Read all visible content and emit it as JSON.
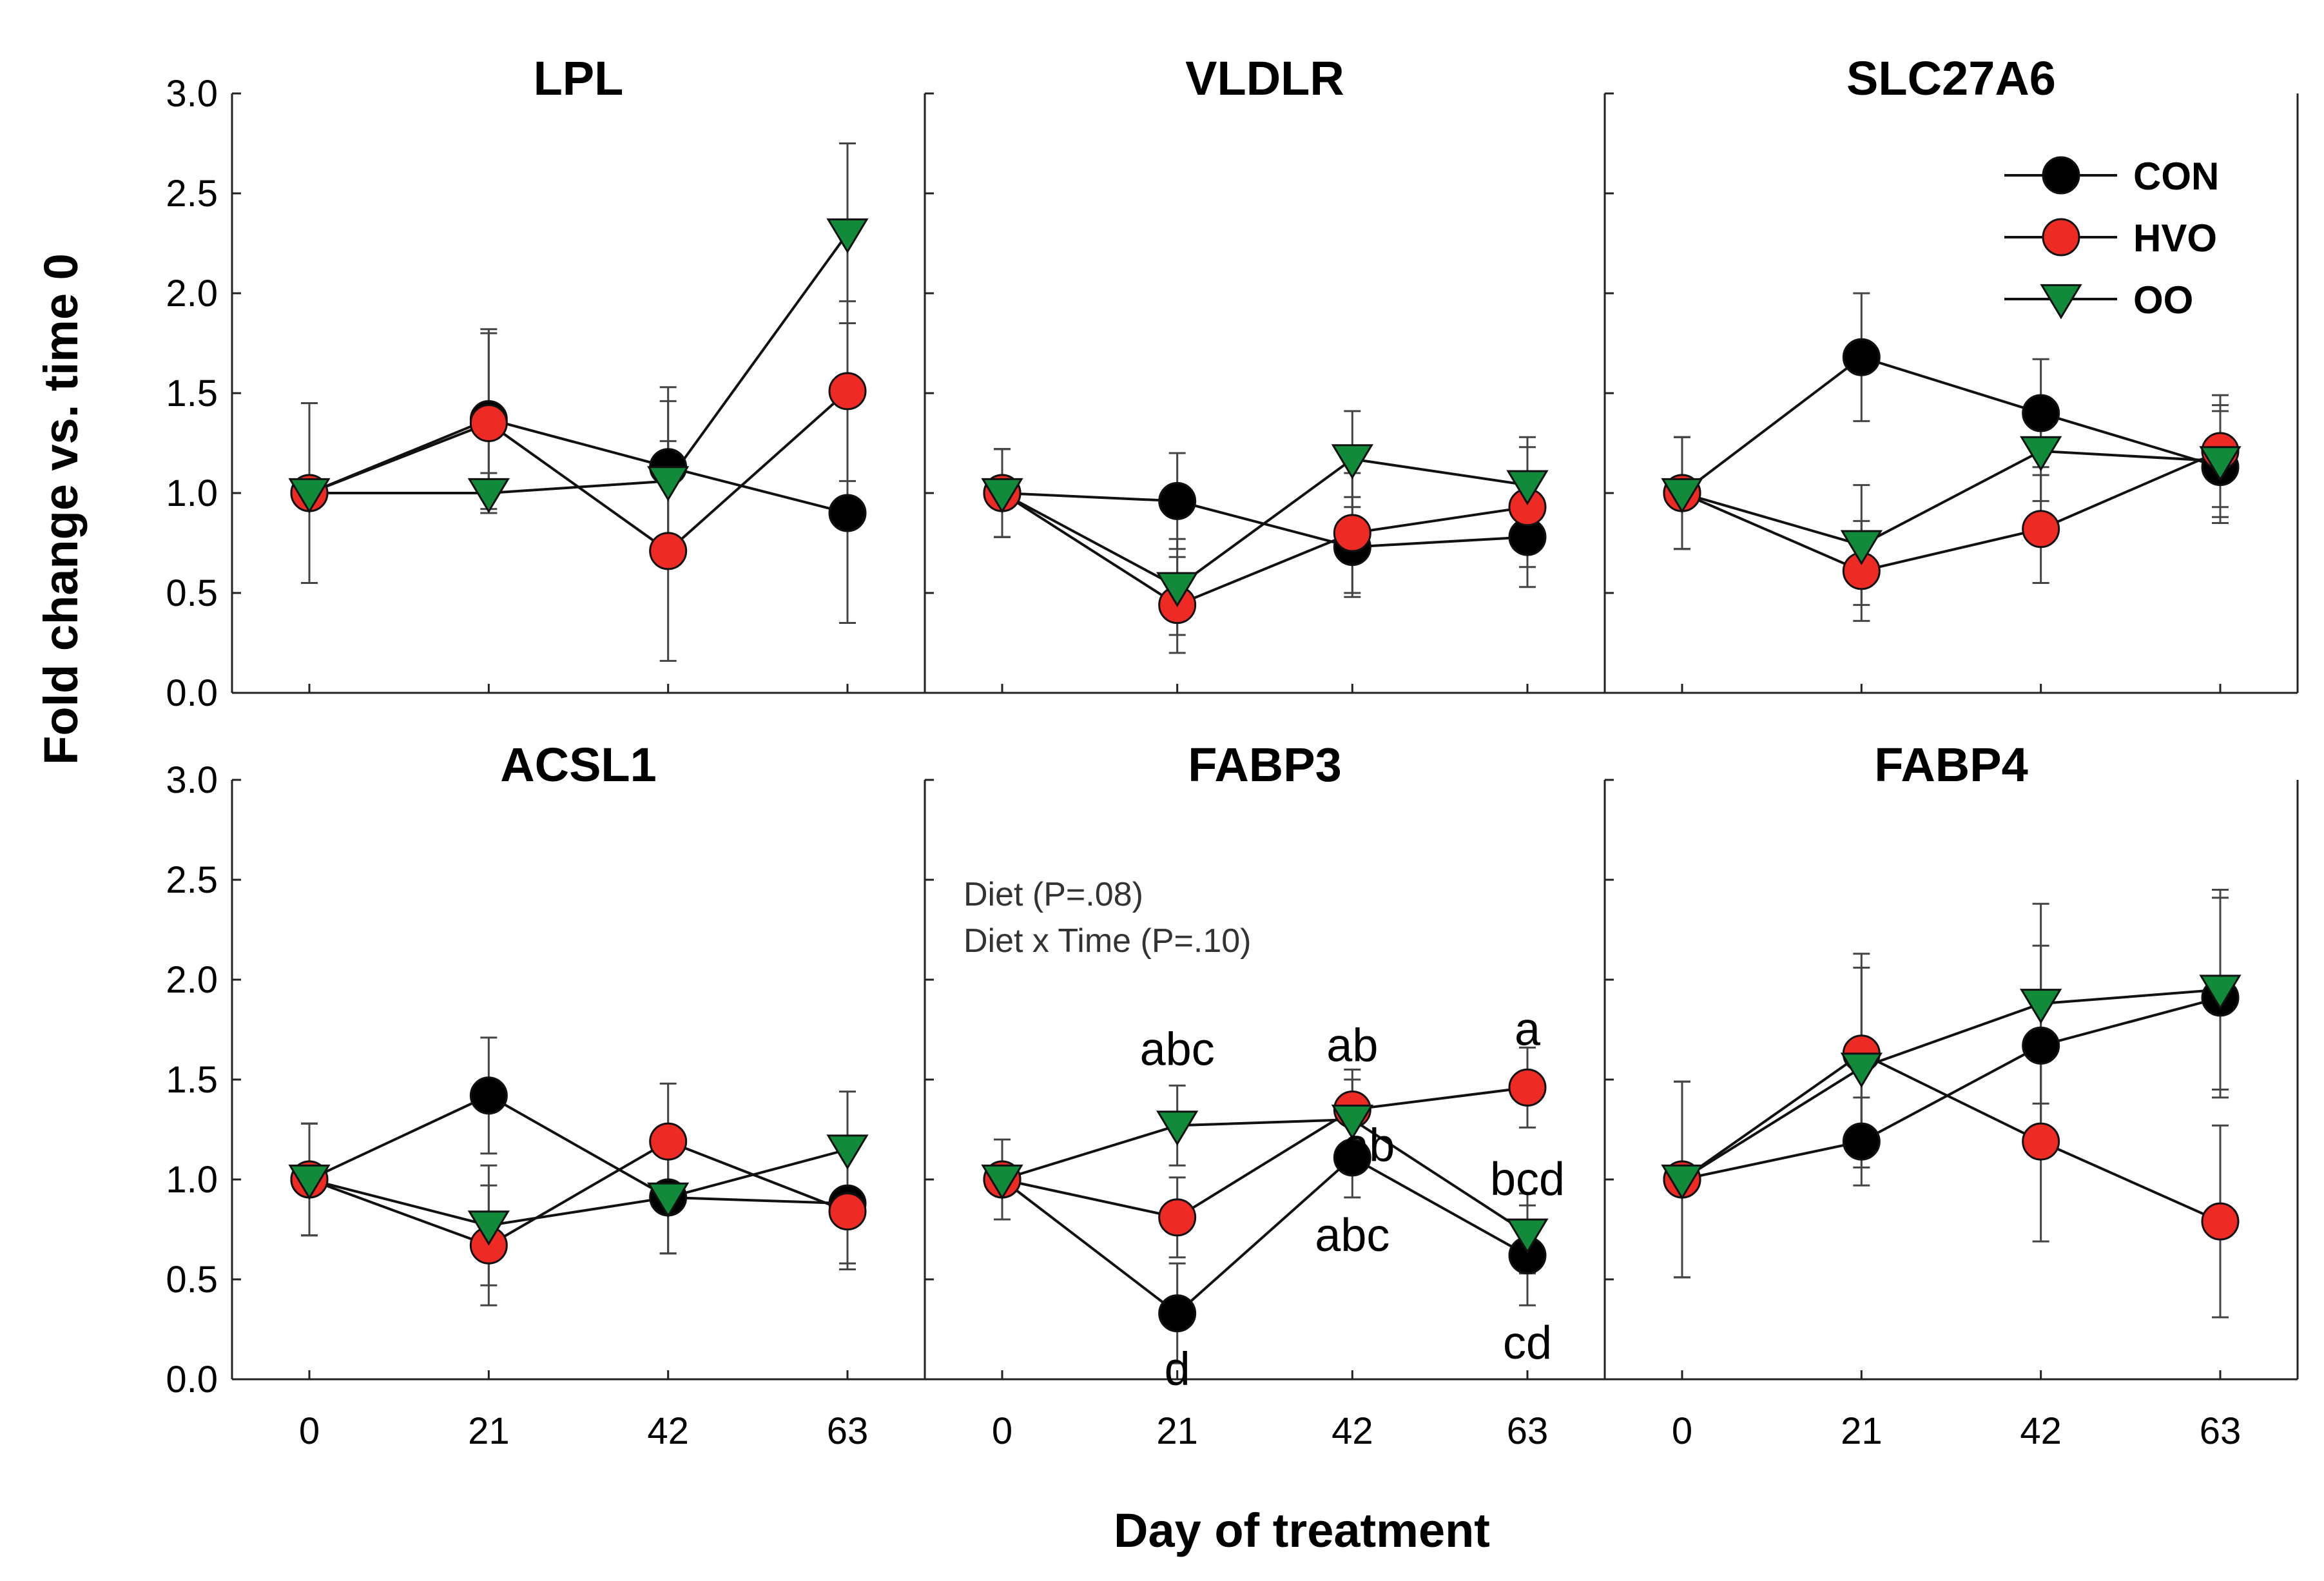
{
  "figure": {
    "ylabel": "Fold change vs. time 0",
    "xlabel": "Day of treatment",
    "ylim": [
      0,
      3.0
    ],
    "yticks": [
      "0.0",
      "0.5",
      "1.0",
      "1.5",
      "2.0",
      "2.5",
      "3.0"
    ],
    "x": [
      0,
      21,
      42,
      63
    ],
    "xticks": [
      "0",
      "21",
      "42",
      "63"
    ]
  },
  "legend": {
    "items": [
      {
        "name": "CON",
        "color": "#000000",
        "marker": "circle"
      },
      {
        "name": "HVO",
        "color": "#ee2a24",
        "marker": "circle"
      },
      {
        "name": "OO",
        "color": "#118a3a",
        "marker": "triangle-down"
      }
    ]
  },
  "chart_data": [
    {
      "type": "line",
      "title": "LPL",
      "x": [
        0,
        21,
        42,
        63
      ],
      "series": [
        {
          "name": "CON",
          "values": [
            1.0,
            1.37,
            1.13,
            0.9
          ],
          "errors": [
            0.45,
            0.45,
            0.4,
            0.55
          ]
        },
        {
          "name": "HVO",
          "values": [
            1.0,
            1.35,
            0.71,
            1.51
          ],
          "errors": [
            0.45,
            0.45,
            0.55,
            0.45
          ]
        },
        {
          "name": "OO",
          "values": [
            1.0,
            1.0,
            1.06,
            2.3
          ],
          "errors": [
            0.45,
            0.1,
            0.4,
            0.45
          ]
        }
      ]
    },
    {
      "type": "line",
      "title": "VLDLR",
      "x": [
        0,
        21,
        42,
        63
      ],
      "series": [
        {
          "name": "CON",
          "values": [
            1.0,
            0.96,
            0.73,
            0.78
          ],
          "errors": [
            0.22,
            0.24,
            0.25,
            0.25
          ]
        },
        {
          "name": "HVO",
          "values": [
            1.0,
            0.44,
            0.8,
            0.93
          ],
          "errors": [
            0.22,
            0.24,
            0.3,
            0.3
          ]
        },
        {
          "name": "OO",
          "values": [
            1.0,
            0.53,
            1.17,
            1.04
          ],
          "errors": [
            0.22,
            0.24,
            0.24,
            0.24
          ]
        }
      ]
    },
    {
      "type": "line",
      "title": "SLC27A6",
      "x": [
        0,
        21,
        42,
        63
      ],
      "series": [
        {
          "name": "CON",
          "values": [
            1.0,
            1.68,
            1.4,
            1.13
          ],
          "errors": [
            0.28,
            0.32,
            0.27,
            0.28
          ]
        },
        {
          "name": "HVO",
          "values": [
            1.0,
            0.61,
            0.82,
            1.21
          ],
          "errors": [
            0.28,
            0.25,
            0.27,
            0.28
          ]
        },
        {
          "name": "OO",
          "values": [
            1.0,
            0.74,
            1.21,
            1.16
          ],
          "errors": [
            0.28,
            0.3,
            0.25,
            0.28
          ]
        }
      ]
    },
    {
      "type": "line",
      "title": "ACSL1",
      "x": [
        0,
        21,
        42,
        63
      ],
      "series": [
        {
          "name": "CON",
          "values": [
            1.0,
            1.42,
            0.91,
            0.88
          ],
          "errors": [
            0.28,
            0.29,
            0.28,
            0.3
          ]
        },
        {
          "name": "HVO",
          "values": [
            1.0,
            0.67,
            1.19,
            0.84
          ],
          "errors": [
            0.28,
            0.3,
            0.29,
            0.29
          ]
        },
        {
          "name": "OO",
          "values": [
            1.0,
            0.77,
            0.91,
            1.15
          ],
          "errors": [
            0.28,
            0.3,
            0.28,
            0.29
          ]
        }
      ]
    },
    {
      "type": "line",
      "title": "FABP3",
      "x": [
        0,
        21,
        42,
        63
      ],
      "series": [
        {
          "name": "CON",
          "values": [
            1.0,
            0.33,
            1.11,
            0.62
          ],
          "errors": [
            0.2,
            0.25,
            0.2,
            0.25
          ]
        },
        {
          "name": "HVO",
          "values": [
            1.0,
            0.81,
            1.35,
            1.46
          ],
          "errors": [
            0.2,
            0.2,
            0.2,
            0.2
          ]
        },
        {
          "name": "OO",
          "values": [
            1.0,
            1.27,
            1.3,
            0.73
          ],
          "errors": [
            0.2,
            0.2,
            0.2,
            0.2
          ]
        }
      ],
      "notes": [
        "Diet (P=.08)",
        "Diet x Time (P=.10)"
      ],
      "annotations": [
        {
          "text": "abc",
          "x": 21,
          "y": 1.65
        },
        {
          "text": "ab",
          "x": 42,
          "y": 1.67
        },
        {
          "text": "a",
          "x": 63,
          "y": 1.75
        },
        {
          "text": "ab",
          "x": 44,
          "y": 1.17
        },
        {
          "text": "bcd",
          "x": 63,
          "y": 1.0
        },
        {
          "text": "abc",
          "x": 42,
          "y": 0.72
        },
        {
          "text": "d",
          "x": 21,
          "y": 0.05
        },
        {
          "text": "cd",
          "x": 63,
          "y": 0.18
        }
      ]
    },
    {
      "type": "line",
      "title": "FABP4",
      "x": [
        0,
        21,
        42,
        63
      ],
      "series": [
        {
          "name": "CON",
          "values": [
            1.0,
            1.19,
            1.67,
            1.91
          ],
          "errors": [
            0.49,
            0.22,
            0.5,
            0.5
          ]
        },
        {
          "name": "HVO",
          "values": [
            1.0,
            1.63,
            1.19,
            0.79
          ],
          "errors": [
            0.49,
            0.5,
            0.5,
            0.48
          ]
        },
        {
          "name": "OO",
          "values": [
            1.0,
            1.56,
            1.88,
            1.95
          ],
          "errors": [
            0.49,
            0.5,
            0.5,
            0.5
          ]
        }
      ]
    }
  ]
}
